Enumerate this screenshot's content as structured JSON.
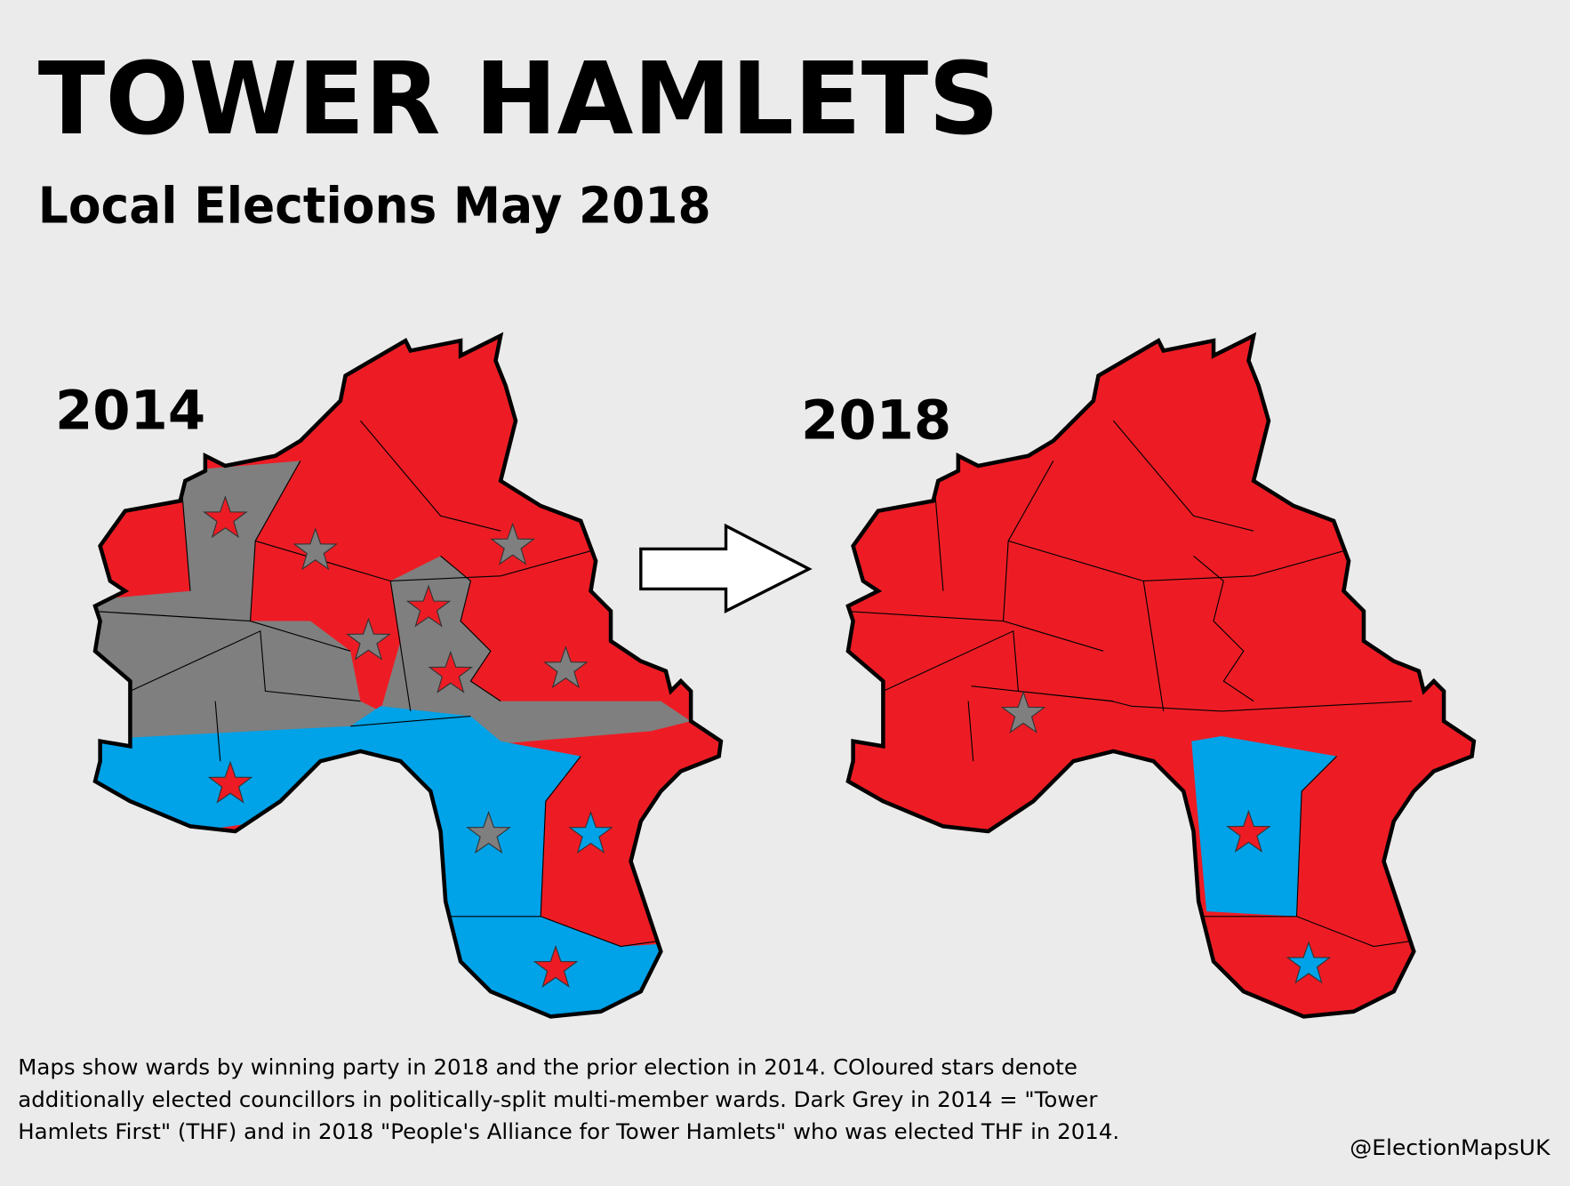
{
  "title": "TOWER HAMLETS",
  "subtitle": "Local Elections May 2018",
  "maps": [
    {
      "label": "2014"
    },
    {
      "label": "2018"
    }
  ],
  "caption": [
    "Maps show wards by winning party in 2018 and the prior election in 2014. COloured stars denote",
    "additionally elected councillors in politically-split multi-member wards. Dark Grey in 2014 = \"Tower",
    "Hamlets First\" (THF) and in 2018 \"People's Alliance for Tower Hamlets\" who was elected THF in 2014."
  ],
  "credit": "@ElectionMapsUK"
}
